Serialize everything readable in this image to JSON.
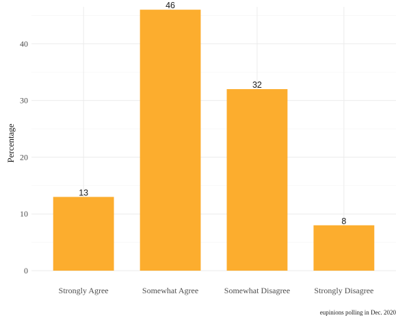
{
  "chart_data": {
    "type": "bar",
    "categories": [
      "Strongly Agree",
      "Somewhat Agree",
      "Somewhat Disagree",
      "Strongly Disagree"
    ],
    "values": [
      13,
      46,
      32,
      8
    ],
    "data_labels": [
      "13",
      "46",
      "32",
      "8"
    ],
    "title": "",
    "xlabel": "",
    "ylabel": "Percentage",
    "ylim": [
      0,
      46.5
    ],
    "yticks": [
      0,
      10,
      20,
      30,
      40
    ],
    "bar_color": "#fcad2e",
    "grid": true,
    "legend": "none",
    "caption": "eupinions polling in Dec. 2020"
  }
}
